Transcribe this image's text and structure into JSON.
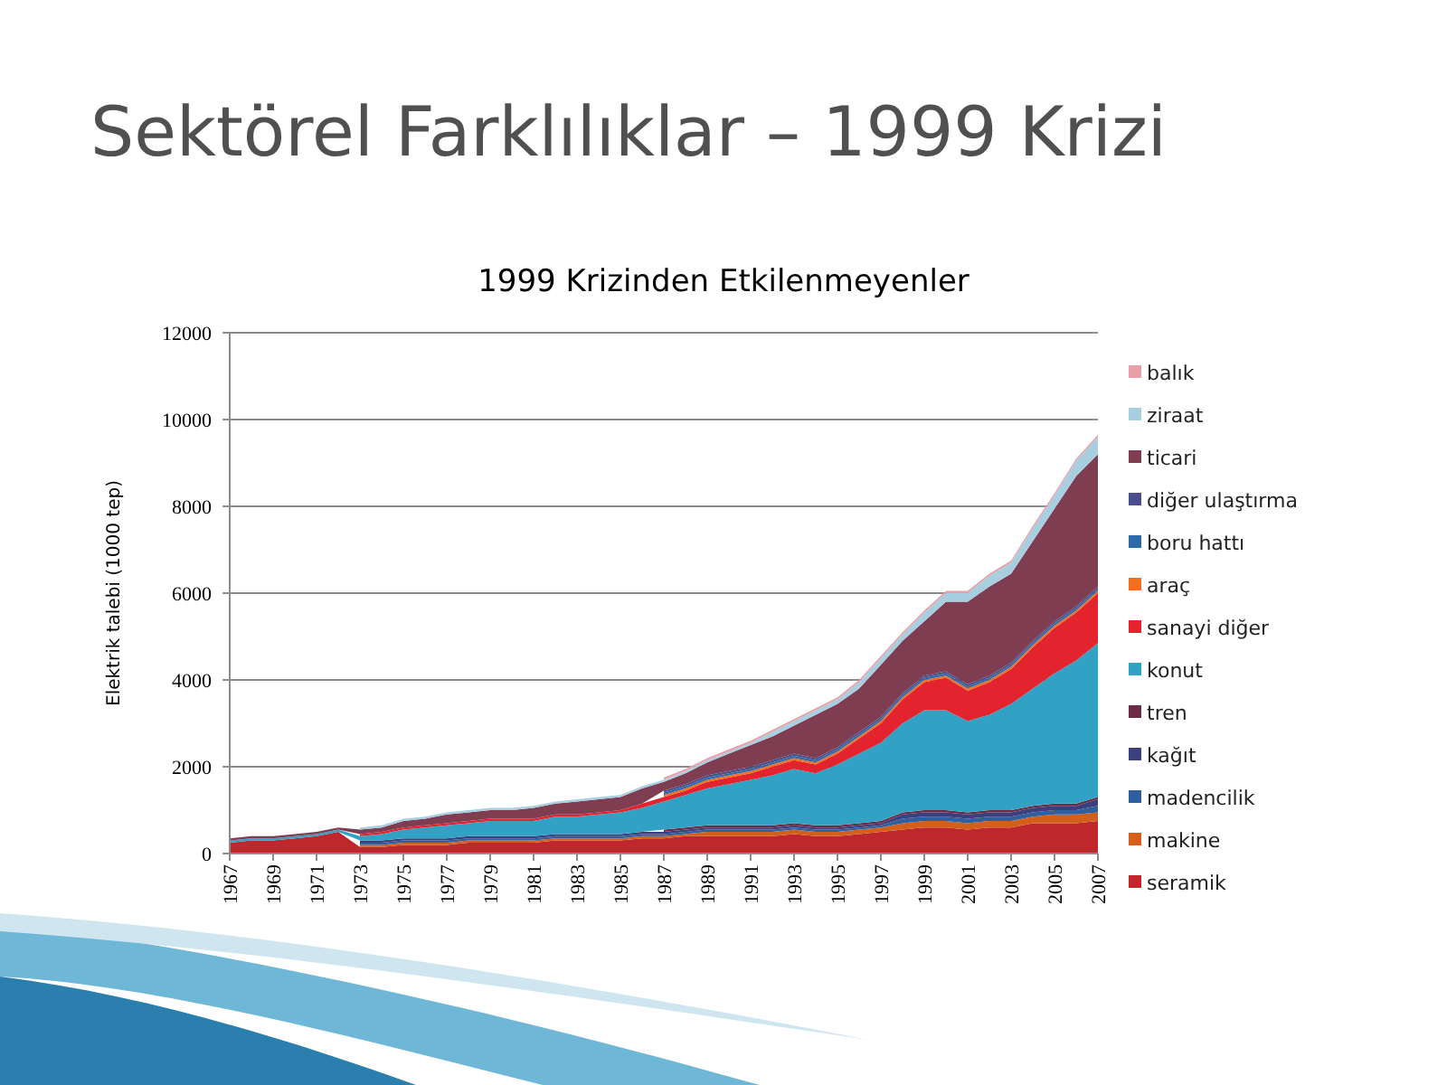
{
  "chart_data": {
    "type": "area",
    "stacked": true,
    "title": "Sektörel Farklılıklar – 1999 Krizi",
    "subtitle": "1999 Krizinden Etkilenmeyenler",
    "ylabel": "Elektrik talebi (1000 tep)",
    "x": [
      1967,
      1968,
      1969,
      1970,
      1971,
      1972,
      1973,
      1974,
      1975,
      1976,
      1977,
      1978,
      1979,
      1980,
      1981,
      1982,
      1983,
      1984,
      1985,
      1986,
      1987,
      1988,
      1989,
      1990,
      1991,
      1992,
      1993,
      1994,
      1995,
      1996,
      1997,
      1998,
      1999,
      2000,
      2001,
      2002,
      2003,
      2004,
      2005,
      2006,
      2007
    ],
    "xlim": [
      1967,
      2007
    ],
    "xticks": [
      1967,
      1969,
      1971,
      1973,
      1975,
      1977,
      1979,
      1981,
      1983,
      1985,
      1987,
      1989,
      1991,
      1993,
      1995,
      1997,
      1999,
      2001,
      2003,
      2005,
      2007
    ],
    "ylim": [
      0,
      12000
    ],
    "yticks": [
      0,
      2000,
      4000,
      6000,
      8000,
      10000,
      12000
    ],
    "grid": "y",
    "legend": "right",
    "series": [
      {
        "name": "seramik",
        "color": "#c0272d",
        "values": [
          250,
          300,
          300,
          350,
          400,
          500,
          150,
          150,
          200,
          200,
          200,
          250,
          250,
          250,
          250,
          300,
          300,
          300,
          300,
          350,
          350,
          400,
          400,
          400,
          400,
          400,
          450,
          400,
          400,
          450,
          500,
          550,
          600,
          600,
          550,
          600,
          600,
          700,
          700,
          700,
          750
        ]
      },
      {
        "name": "makine",
        "color": "#d2601a",
        "values": [
          null,
          null,
          null,
          null,
          null,
          null,
          50,
          50,
          50,
          50,
          50,
          50,
          50,
          50,
          50,
          50,
          50,
          50,
          50,
          50,
          50,
          50,
          100,
          100,
          100,
          100,
          100,
          100,
          100,
          100,
          100,
          150,
          150,
          150,
          150,
          150,
          150,
          150,
          200,
          200,
          200
        ]
      },
      {
        "name": "madencilik",
        "color": "#2e5f9e",
        "values": [
          null,
          null,
          null,
          null,
          null,
          null,
          50,
          50,
          50,
          50,
          50,
          50,
          50,
          50,
          50,
          50,
          50,
          50,
          50,
          50,
          50,
          50,
          50,
          50,
          50,
          50,
          50,
          50,
          50,
          50,
          50,
          100,
          100,
          100,
          100,
          100,
          100,
          100,
          100,
          100,
          150
        ]
      },
      {
        "name": "kağıt",
        "color": "#3b3f7e",
        "values": [
          null,
          null,
          null,
          null,
          null,
          null,
          50,
          50,
          50,
          50,
          50,
          50,
          50,
          50,
          50,
          50,
          50,
          50,
          50,
          50,
          50,
          50,
          50,
          50,
          50,
          50,
          50,
          50,
          50,
          50,
          50,
          100,
          100,
          100,
          100,
          100,
          100,
          100,
          100,
          100,
          150
        ]
      },
      {
        "name": "tren",
        "color": "#6b2c45",
        "values": [
          null,
          null,
          null,
          null,
          null,
          null,
          null,
          null,
          null,
          null,
          null,
          null,
          null,
          null,
          null,
          null,
          null,
          null,
          null,
          null,
          50,
          50,
          50,
          50,
          50,
          50,
          50,
          50,
          50,
          50,
          50,
          50,
          50,
          50,
          50,
          50,
          50,
          50,
          50,
          50,
          50
        ]
      },
      {
        "name": "konut",
        "color": "#31a2c4",
        "values": [
          50,
          50,
          50,
          50,
          50,
          50,
          100,
          150,
          200,
          250,
          300,
          300,
          350,
          350,
          350,
          400,
          400,
          450,
          500,
          550,
          650,
          750,
          850,
          950,
          1050,
          1150,
          1250,
          1200,
          1400,
          1600,
          1800,
          2050,
          2300,
          2300,
          2100,
          2200,
          2450,
          2700,
          3000,
          3300,
          3550
        ]
      },
      {
        "name": "sanayi diğer",
        "color": "#e3232d",
        "values": [
          null,
          null,
          null,
          null,
          null,
          null,
          50,
          50,
          50,
          50,
          50,
          50,
          50,
          50,
          50,
          50,
          50,
          50,
          50,
          100,
          100,
          100,
          150,
          150,
          150,
          200,
          200,
          200,
          250,
          350,
          450,
          550,
          650,
          750,
          700,
          750,
          800,
          950,
          1050,
          1100,
          1150
        ]
      },
      {
        "name": "araç",
        "color": "#f07020",
        "values": [
          null,
          null,
          null,
          null,
          null,
          null,
          null,
          null,
          null,
          null,
          null,
          null,
          null,
          null,
          null,
          null,
          null,
          null,
          null,
          null,
          50,
          50,
          50,
          50,
          50,
          50,
          50,
          50,
          50,
          50,
          50,
          50,
          50,
          50,
          50,
          50,
          50,
          50,
          50,
          50,
          50
        ]
      },
      {
        "name": "boru hattı",
        "color": "#2f6aa8",
        "values": [
          null,
          null,
          null,
          null,
          null,
          null,
          null,
          null,
          null,
          null,
          null,
          null,
          null,
          null,
          null,
          null,
          null,
          null,
          null,
          null,
          50,
          50,
          50,
          50,
          50,
          50,
          50,
          50,
          50,
          50,
          50,
          50,
          50,
          50,
          50,
          50,
          50,
          50,
          50,
          50,
          50
        ]
      },
      {
        "name": "diğer ulaştırma",
        "color": "#4a4f8c",
        "values": [
          null,
          null,
          null,
          null,
          null,
          null,
          null,
          null,
          null,
          null,
          null,
          null,
          null,
          null,
          null,
          null,
          null,
          null,
          null,
          null,
          50,
          50,
          50,
          50,
          50,
          50,
          50,
          50,
          50,
          50,
          50,
          50,
          50,
          50,
          50,
          50,
          50,
          50,
          50,
          50,
          50
        ]
      },
      {
        "name": "ticari",
        "color": "#7f3d52",
        "values": [
          50,
          50,
          50,
          50,
          50,
          50,
          100,
          100,
          150,
          150,
          200,
          200,
          200,
          200,
          250,
          250,
          300,
          300,
          300,
          350,
          200,
          250,
          300,
          400,
          500,
          550,
          650,
          1000,
          1000,
          1000,
          1200,
          1200,
          1250,
          1600,
          1900,
          2050,
          2050,
          2300,
          2600,
          3000,
          3050
        ]
      },
      {
        "name": "ziraat",
        "color": "#a7cfe0",
        "values": [
          null,
          null,
          null,
          null,
          null,
          null,
          50,
          50,
          50,
          50,
          50,
          50,
          50,
          50,
          50,
          50,
          50,
          50,
          50,
          50,
          50,
          50,
          50,
          50,
          50,
          100,
          100,
          100,
          100,
          150,
          150,
          150,
          200,
          200,
          200,
          250,
          250,
          300,
          300,
          350,
          400
        ]
      },
      {
        "name": "balık",
        "color": "#e8a0a8",
        "values": [
          null,
          null,
          null,
          null,
          null,
          null,
          null,
          null,
          null,
          null,
          null,
          null,
          null,
          null,
          null,
          null,
          null,
          null,
          null,
          null,
          50,
          50,
          50,
          50,
          50,
          50,
          50,
          50,
          50,
          50,
          50,
          50,
          50,
          50,
          50,
          50,
          50,
          50,
          50,
          50,
          50
        ]
      }
    ]
  }
}
